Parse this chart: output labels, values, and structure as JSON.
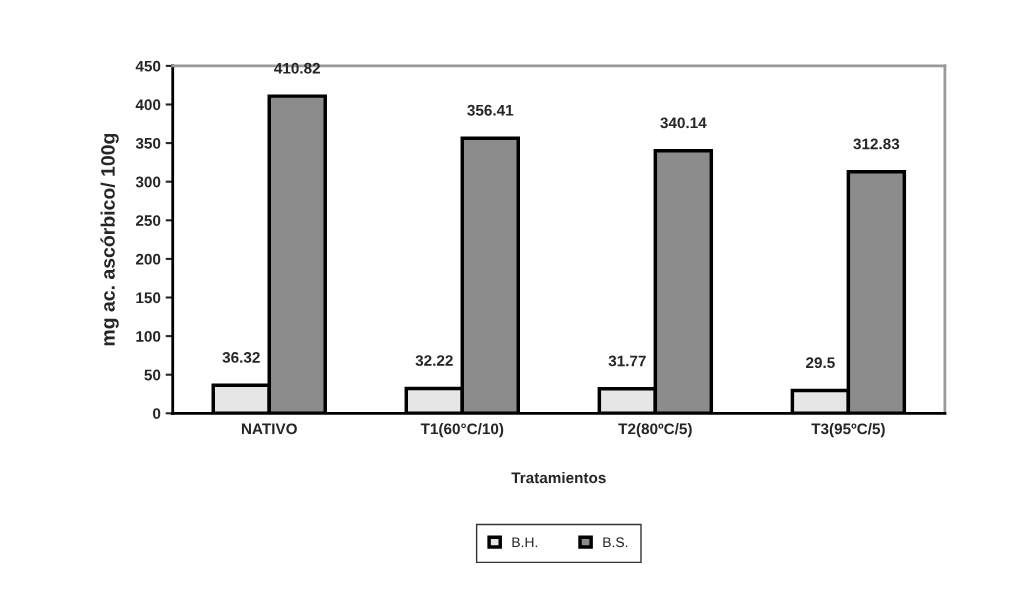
{
  "chart_data": {
    "type": "bar",
    "xlabel": "Tratamientos",
    "ylabel": "mg ac. ascórbico/ 100g",
    "categories": [
      "NATIVO",
      "T1(60°C/10)",
      "T2(80ºC/5)",
      "T3(95ºC/5)"
    ],
    "series": [
      {
        "name": "B.H.",
        "color": "#e6e6e6",
        "values": [
          36.32,
          32.22,
          31.77,
          29.5
        ]
      },
      {
        "name": "B.S.",
        "color": "#8c8c8c",
        "values": [
          410.82,
          356.41,
          340.14,
          312.83
        ]
      }
    ],
    "ylim": [
      0,
      450
    ],
    "yticks": [
      0,
      50,
      100,
      150,
      200,
      250,
      300,
      350,
      400,
      450
    ],
    "data_labels": true,
    "grid": false,
    "legend": "bottom"
  }
}
